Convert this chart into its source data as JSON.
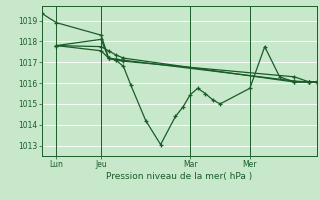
{
  "background_color": "#c8e8cc",
  "grid_color": "#ffffff",
  "line_color": "#1a5c28",
  "title": "Pression niveau de la mer( hPa )",
  "ylim": [
    1012.5,
    1019.7
  ],
  "yticks": [
    1013,
    1014,
    1015,
    1016,
    1017,
    1018,
    1019
  ],
  "xtick_labels": [
    "Lun",
    "Jeu",
    "Mar",
    "Mer"
  ],
  "xtick_positions": [
    8,
    32,
    80,
    112
  ],
  "vline_positions": [
    8,
    32,
    80,
    112
  ],
  "xlim": [
    0,
    148
  ],
  "series1_zigzag": {
    "x": [
      0,
      8,
      32,
      36,
      40,
      44,
      48,
      56,
      64,
      72,
      76,
      80,
      84,
      88,
      92,
      96,
      112,
      120,
      128,
      136,
      144,
      148
    ],
    "y": [
      1019.35,
      1018.9,
      1018.3,
      1017.2,
      1017.1,
      1016.8,
      1015.9,
      1014.2,
      1013.05,
      1014.4,
      1014.85,
      1015.45,
      1015.75,
      1015.5,
      1015.2,
      1015.0,
      1015.75,
      1017.75,
      1016.3,
      1016.05,
      1016.05,
      1016.05
    ]
  },
  "series2_flat": {
    "x": [
      8,
      32,
      36,
      40,
      44,
      136,
      144,
      148
    ],
    "y": [
      1017.8,
      1017.75,
      1017.55,
      1017.35,
      1017.2,
      1016.05,
      1016.05,
      1016.05
    ]
  },
  "series3_up": {
    "x": [
      8,
      32,
      36,
      40,
      44,
      136,
      144,
      148
    ],
    "y": [
      1017.8,
      1018.1,
      1017.2,
      1017.15,
      1017.1,
      1016.1,
      1016.05,
      1016.05
    ]
  },
  "series4_down": {
    "x": [
      8,
      32,
      36,
      40,
      44,
      136,
      144,
      148
    ],
    "y": [
      1017.8,
      1017.55,
      1017.2,
      1017.1,
      1017.05,
      1016.3,
      1016.05,
      1016.05
    ]
  }
}
